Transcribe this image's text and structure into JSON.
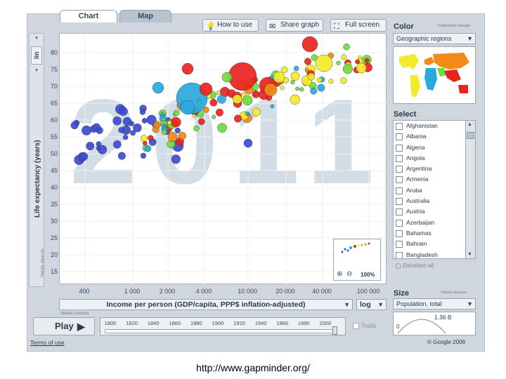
{
  "tabs": [
    "Chart",
    "Map"
  ],
  "toolbar": {
    "how_to_use": "How to use",
    "share_graph": "Share graph",
    "full_screen": "Full screen"
  },
  "watermark_year": "2011",
  "y_axis": {
    "label": "Life expectancy (years)",
    "scale": "lin",
    "ticks": [
      "80",
      "75",
      "70",
      "65",
      "60",
      "55",
      "50",
      "45",
      "40",
      "35",
      "30",
      "25",
      "20",
      "15"
    ],
    "source_label": "Values sources"
  },
  "x_axis": {
    "label": "Income per person (GDP/capita, PPP$ inflation-adjusted)",
    "scale": "log",
    "ticks": [
      "400",
      "1 000",
      "2 000",
      "4 000",
      "10 000",
      "20 000",
      "40 000",
      "100 000"
    ],
    "source_label": "Values sources"
  },
  "zoom": {
    "level": "100%"
  },
  "play": {
    "label": "Play"
  },
  "timeline": {
    "years": [
      "1800",
      "1820",
      "1840",
      "1860",
      "1880",
      "1900",
      "1920",
      "1940",
      "1960",
      "1980",
      "2000"
    ],
    "selected": 2011
  },
  "trails": {
    "label": "Trails"
  },
  "color_panel": {
    "title": "Color",
    "credit": "Gapminder Google",
    "selection": "Geographic regions"
  },
  "select_panel": {
    "title": "Select",
    "countries": [
      "Afghanistan",
      "Albania",
      "Algeria",
      "Angola",
      "Argentina",
      "Armenia",
      "Aruba",
      "Australia",
      "Austria",
      "Azerbaijan",
      "Bahamas",
      "Bahrain",
      "Bangladesh"
    ],
    "deselect": "Deselect all"
  },
  "size_panel": {
    "title": "Size",
    "credit": "Values sources",
    "selection": "Population, total",
    "value": "1.36 B",
    "min": "0"
  },
  "footer": {
    "terms": "Terms of use",
    "copyright": "© Google 2008"
  },
  "caption": "http://www.gapminder.org/",
  "colors": {
    "blue": "#3b4cd0",
    "cyan": "#2aa8e0",
    "green": "#6fdc3c",
    "yellow": "#f2ea2a",
    "orange": "#f08a18",
    "red": "#e8241e"
  }
}
